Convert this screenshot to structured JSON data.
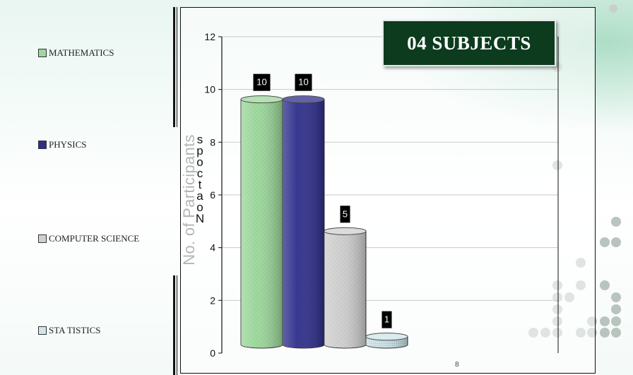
{
  "chart_data": {
    "type": "bar",
    "title": "04 SUBJECTS",
    "ylabel": "No. of Participants",
    "xlabel": "",
    "ylim": [
      0,
      12
    ],
    "yticks": [
      0,
      2,
      4,
      6,
      8,
      10,
      12
    ],
    "grid": true,
    "legend_position": "left",
    "categories": [
      "MATHEMATICS",
      "PHYSICS",
      "COMPUTER SCIENCE",
      "STATISTICS"
    ],
    "values": [
      10,
      10,
      5,
      1
    ],
    "data_labels": [
      "10",
      "10",
      "5",
      "1"
    ],
    "colors": [
      "#9bd89a",
      "#2e2e8c",
      "#cfcfcf",
      "#cfe6ea"
    ]
  },
  "legend": {
    "items": [
      {
        "label": "MATHEMATICS",
        "color": "#9bd89a"
      },
      {
        "label": "PHYSICS",
        "color": "#2e2e8c"
      },
      {
        "label": "COMPUTER SCIENCE",
        "color": "#d0d0d0"
      },
      {
        "label": "STA TISTICS",
        "color": "#cfe6ea"
      }
    ]
  },
  "ylabel_overlay": "spoctaoN",
  "page_number": "8",
  "colors": {
    "title_bg": "#0c3b1e",
    "title_text": "#ffffff",
    "axis": "#111111"
  }
}
